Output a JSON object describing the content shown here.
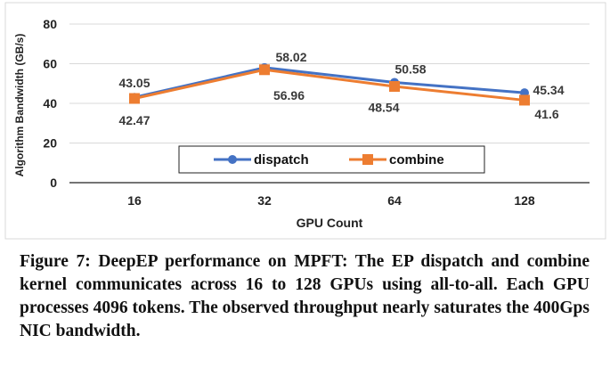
{
  "chart_data": {
    "type": "line",
    "xlabel": "GPU Count",
    "ylabel": "Algorithm Bandwidth (GB/s)",
    "categories": [
      "16",
      "32",
      "64",
      "128"
    ],
    "ylim": [
      0,
      80
    ],
    "yticks": [
      0,
      20,
      40,
      60,
      80
    ],
    "grid": true,
    "legend": "bottom-center",
    "series": [
      {
        "name": "dispatch",
        "values": [
          43.05,
          58.02,
          50.58,
          45.34
        ],
        "labels": [
          "43.05",
          "58.02",
          "50.58",
          "45.34"
        ],
        "color": "#4472C4",
        "marker": "circle"
      },
      {
        "name": "combine",
        "values": [
          42.47,
          56.96,
          48.54,
          41.6
        ],
        "labels": [
          "42.47",
          "56.96",
          "48.54",
          "41.6"
        ],
        "color": "#ED7D31",
        "marker": "square"
      }
    ]
  },
  "caption": "Figure 7: DeepEP performance on MPFT: The EP dispatch and combine kernel communicates across 16 to 128 GPUs using all-to-all. Each GPU processes 4096 tokens. The observed throughput nearly saturates the 400Gps NIC bandwidth."
}
